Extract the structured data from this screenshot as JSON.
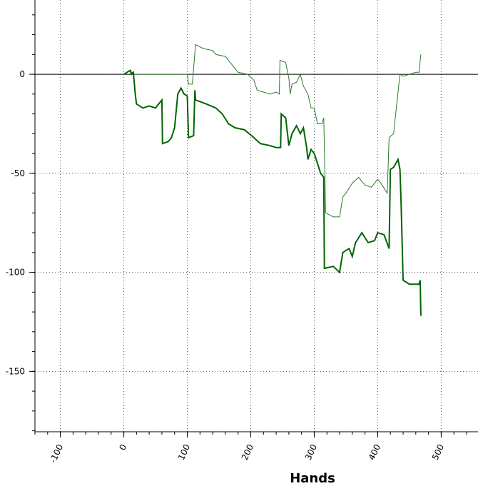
{
  "chart_data": {
    "type": "line",
    "xlabel": "Hands",
    "xlim": [
      -140,
      558
    ],
    "ylim": [
      -180.5,
      37.5
    ],
    "xticks": [
      -100,
      0,
      100,
      200,
      300,
      400,
      500
    ],
    "yticks": [
      0,
      -50,
      -100,
      -150
    ],
    "grid": true,
    "series": [
      {
        "color": "#2a7a2a",
        "width": 1,
        "x": [
          0,
          5,
          10,
          15,
          100,
          102,
          108,
          113,
          125,
          140,
          145,
          160,
          170,
          180,
          195,
          205,
          210,
          230,
          240,
          245,
          246,
          255,
          260,
          262,
          265,
          272,
          278,
          283,
          290,
          295,
          300,
          305,
          312,
          315,
          318,
          330,
          340,
          345,
          350,
          360,
          370,
          380,
          390,
          400,
          405,
          415,
          418,
          425,
          430,
          435,
          440,
          450,
          460,
          465,
          468
        ],
        "values": [
          0,
          1,
          2,
          0,
          0,
          -5,
          -5,
          15,
          13,
          12,
          10,
          9,
          5,
          1,
          0,
          -3,
          -8,
          -10,
          -9,
          -10,
          7,
          6,
          -2,
          -10,
          -5,
          -4,
          0,
          -6,
          -10,
          -17,
          -17,
          -25,
          -25,
          -22,
          -70,
          -72,
          -72,
          -62,
          -60,
          -55,
          -52,
          -56,
          -57,
          -53,
          -55,
          -60,
          -32,
          -30,
          -15,
          0,
          -1,
          0,
          1,
          1,
          10
        ]
      },
      {
        "color": "#006400",
        "width": 2,
        "x": [
          0,
          5,
          10,
          12,
          15,
          18,
          20,
          30,
          40,
          50,
          60,
          61,
          70,
          75,
          80,
          85,
          90,
          95,
          100,
          102,
          110,
          112,
          113,
          130,
          145,
          155,
          165,
          175,
          190,
          205,
          215,
          230,
          240,
          247,
          248,
          255,
          260,
          265,
          272,
          278,
          283,
          288,
          290,
          295,
          300,
          310,
          315,
          316,
          330,
          340,
          345,
          355,
          360,
          365,
          375,
          385,
          395,
          400,
          410,
          418,
          420,
          425,
          432,
          435,
          437,
          440,
          450,
          465,
          467,
          468
        ],
        "values": [
          0,
          1,
          2,
          0,
          1,
          -10,
          -15,
          -17,
          -16,
          -17,
          -13,
          -35,
          -34,
          -32,
          -27,
          -10,
          -7,
          -10,
          -11,
          -32,
          -31,
          -8,
          -13,
          -15,
          -17,
          -20,
          -25,
          -27,
          -28,
          -32,
          -35,
          -36,
          -37,
          -37,
          -20,
          -22,
          -36,
          -30,
          -26,
          -30,
          -27,
          -37,
          -43,
          -38,
          -40,
          -50,
          -52,
          -98,
          -97,
          -100,
          -90,
          -88,
          -92,
          -85,
          -80,
          -85,
          -84,
          -80,
          -81,
          -88,
          -48,
          -47,
          -43,
          -48,
          -66,
          -104,
          -106,
          -106,
          -104,
          -122
        ]
      }
    ]
  }
}
